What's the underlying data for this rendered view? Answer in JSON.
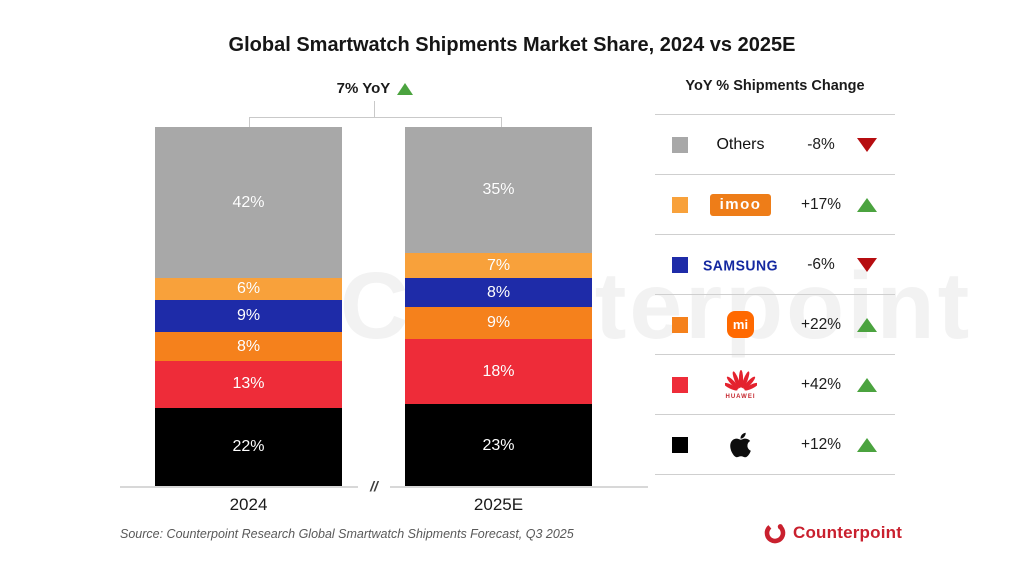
{
  "title": "Global Smartwatch Shipments Market Share, 2024 vs 2025E",
  "annotation": {
    "label": "7% YoY",
    "direction": "up"
  },
  "chart_data": {
    "type": "bar",
    "stacked": true,
    "categories": [
      "2024",
      "2025E"
    ],
    "series": [
      {
        "name": "Others",
        "color": "#a8a8a8",
        "values": [
          42,
          35
        ]
      },
      {
        "name": "imoo",
        "color": "#f8a13b",
        "values": [
          6,
          7
        ]
      },
      {
        "name": "Samsung",
        "color": "#1e2ba8",
        "values": [
          9,
          8
        ]
      },
      {
        "name": "Xiaomi",
        "color": "#f5811c",
        "values": [
          8,
          9
        ]
      },
      {
        "name": "Huawei",
        "color": "#ee2c39",
        "values": [
          13,
          18
        ]
      },
      {
        "name": "Apple",
        "color": "#000000",
        "values": [
          22,
          23
        ]
      }
    ],
    "value_suffix": "%",
    "total_change_label": "7% YoY",
    "axis_break": "//",
    "title": "Global Smartwatch Shipments Market Share, 2024 vs 2025E",
    "legend_position": "right",
    "grid": false,
    "ylim": [
      0,
      100
    ]
  },
  "legend": {
    "header": "YoY % Shipments Change",
    "rows": [
      {
        "brand": "Others",
        "change": "-8%",
        "direction": "down",
        "color": "#a8a8a8"
      },
      {
        "brand": "imoo",
        "change": "+17%",
        "direction": "up",
        "color": "#f8a13b"
      },
      {
        "brand": "SAMSUNG",
        "change": "-6%",
        "direction": "down",
        "color": "#1e2ba8"
      },
      {
        "brand": "Xiaomi",
        "change": "+22%",
        "direction": "up",
        "color": "#f5811c",
        "logo_text": "mi"
      },
      {
        "brand": "Huawei",
        "change": "+42%",
        "direction": "up",
        "color": "#ee2c39",
        "logo_text": "HUAWEI"
      },
      {
        "brand": "Apple",
        "change": "+12%",
        "direction": "up",
        "color": "#000000"
      }
    ]
  },
  "footer": {
    "source": "Source: Counterpoint Research Global Smartwatch Shipments Forecast, Q3 2025",
    "logo_text": "Counterpoint"
  },
  "colors": {
    "up": "#4ba33f",
    "down": "#b60d10",
    "brand_red": "#c9202e"
  },
  "watermark": "Counterpoint"
}
